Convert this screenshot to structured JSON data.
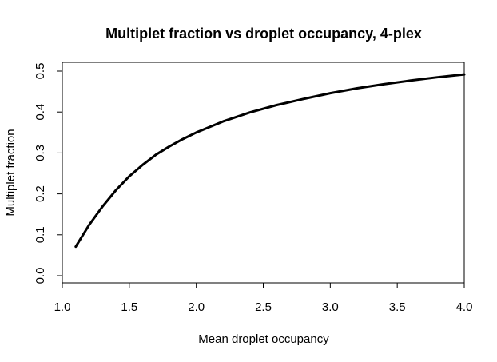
{
  "chart_data": {
    "type": "line",
    "title": "Multiplet fraction vs droplet occupancy, 4-plex",
    "xlabel": "Mean droplet occupancy",
    "ylabel": "Multiplet fraction",
    "xlim": [
      1.0,
      4.0
    ],
    "ylim": [
      0.0,
      0.5
    ],
    "x_ticks": [
      "1.0",
      "1.5",
      "2.0",
      "2.5",
      "3.0",
      "3.5",
      "4.0"
    ],
    "y_ticks": [
      "0.0",
      "0.1",
      "0.2",
      "0.3",
      "0.4",
      "0.5"
    ],
    "grid": false,
    "series": [
      {
        "color": "#000000",
        "x": [
          1.1,
          1.2,
          1.3,
          1.4,
          1.5,
          1.6,
          1.7,
          1.8,
          1.9,
          2.0,
          2.2,
          2.4,
          2.6,
          2.8,
          3.0,
          3.2,
          3.4,
          3.6,
          3.8,
          4.0
        ],
        "y": [
          0.071,
          0.124,
          0.169,
          0.209,
          0.243,
          0.271,
          0.296,
          0.316,
          0.334,
          0.35,
          0.377,
          0.399,
          0.417,
          0.432,
          0.446,
          0.458,
          0.468,
          0.477,
          0.485,
          0.492
        ]
      }
    ]
  }
}
